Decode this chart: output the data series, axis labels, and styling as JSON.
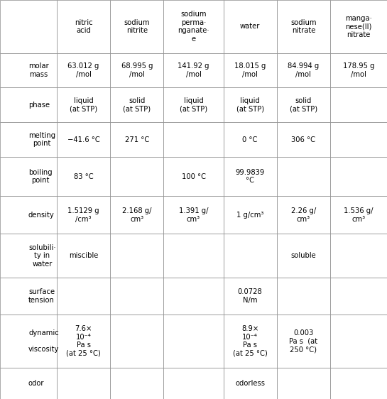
{
  "columns": [
    "",
    "nitric\nacid",
    "sodium\nnitrite",
    "sodium\nperma·\nnganate·\ne",
    "water",
    "sodium\nnitrate",
    "manga·\nnese(II)\nnitrate"
  ],
  "rows": [
    {
      "label": "molar\nmass",
      "values": [
        "63.012 g\n/mol",
        "68.995 g\n/mol",
        "141.92 g\n/mol",
        "18.015 g\n/mol",
        "84.994 g\n/mol",
        "178.95 g\n/mol"
      ]
    },
    {
      "label": "phase",
      "values": [
        "liquid\n(at STP)",
        "solid\n(at STP)",
        "liquid\n(at STP)",
        "liquid\n(at STP)",
        "solid\n(at STP)",
        ""
      ]
    },
    {
      "label": "melting\npoint",
      "values": [
        "−41.6 °C",
        "271 °C",
        "",
        "0 °C",
        "306 °C",
        ""
      ]
    },
    {
      "label": "boiling\npoint",
      "values": [
        "83 °C",
        "",
        "100 °C",
        "99.9839\n°C",
        "",
        ""
      ]
    },
    {
      "label": "density",
      "values": [
        "1.5129 g\n/cm³",
        "2.168 g/\ncm³",
        "1.391 g/\ncm³",
        "1 g/cm³",
        "2.26 g/\ncm³",
        "1.536 g/\ncm³"
      ]
    },
    {
      "label": "solubili·\nty in\nwater",
      "values": [
        "miscible",
        "",
        "",
        "",
        "soluble",
        ""
      ]
    },
    {
      "label": "surface\ntension",
      "values": [
        "",
        "",
        "",
        "0.0728\nN/m",
        "",
        ""
      ]
    },
    {
      "label": "dynamic\n\nviscosity",
      "values": [
        "7.6×\n10⁻⁴\nPa s\n(at 25 °C)",
        "",
        "",
        "8.9×\n10⁻⁴\nPa s\n(at 25 °C)",
        "0.003\nPa s  (at\n250 °C)",
        ""
      ]
    },
    {
      "label": "odor",
      "values": [
        "",
        "",
        "",
        "odorless",
        "",
        ""
      ]
    }
  ],
  "bg_color": "#ffffff",
  "border_color": "#888888",
  "header_bg": "#ffffff",
  "cell_bg": "#ffffff",
  "text_color": "#000000",
  "small_text_color": "#555555"
}
